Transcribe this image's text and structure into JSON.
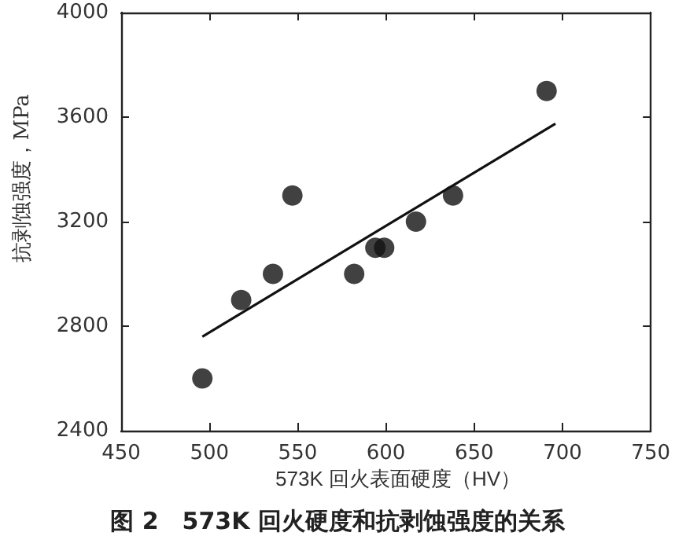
{
  "chart_data": {
    "type": "scatter",
    "title": "图 2　573K 回火硬度和抗剥蚀强度的关系",
    "xlabel": "573K 回火表面硬度（HV）",
    "ylabel": "抗剥蚀强度，MPa",
    "marker": "circle",
    "grid": false,
    "xlim": [
      450,
      750
    ],
    "xticks": [
      450,
      500,
      550,
      600,
      650,
      700,
      750
    ],
    "ylim": [
      2400,
      4000
    ],
    "yticks": [
      2400,
      2800,
      3200,
      3600,
      4000
    ],
    "series": [
      {
        "color": "#111111",
        "x": [
          496,
          518,
          536,
          547,
          582,
          594,
          599,
          617,
          638,
          691
        ],
        "values": [
          2600,
          2900,
          3000,
          3300,
          3000,
          3100,
          3100,
          3200,
          3300,
          3700
        ]
      },
      {
        "type": "line",
        "color": "#111111",
        "marker": "none",
        "x": [
          496,
          696
        ],
        "values": [
          2760,
          3575
        ]
      }
    ]
  }
}
